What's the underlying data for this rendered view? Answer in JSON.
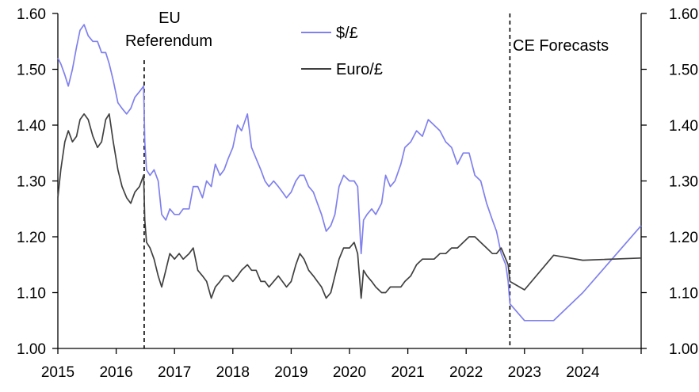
{
  "chart_data": {
    "type": "line",
    "x_axis": {
      "min": 2015,
      "max": 2025,
      "ticks": [
        "2015",
        "2016",
        "2017",
        "2018",
        "2019",
        "2020",
        "2021",
        "2022",
        "2023",
        "2024"
      ]
    },
    "y_left": {
      "min": 1.0,
      "max": 1.6,
      "ticks": [
        "1.00",
        "1.10",
        "1.20",
        "1.30",
        "1.40",
        "1.50",
        "1.60"
      ]
    },
    "y_right": {
      "min": 1.0,
      "max": 1.6,
      "ticks": [
        "1.00",
        "1.10",
        "1.20",
        "1.30",
        "1.40",
        "1.50",
        "1.60"
      ]
    },
    "grid": false,
    "legend": {
      "placement": "top-center",
      "entries": [
        "$/£",
        "Euro/£"
      ]
    },
    "annotations": {
      "eu_referendum": {
        "label_line1": "EU",
        "label_line2": "Referendum",
        "x": 2016.48
      },
      "ce_forecasts": {
        "label": "CE Forecasts",
        "x": 2022.75
      }
    },
    "series": [
      {
        "name": "$/£",
        "color": "#8080ee",
        "points": [
          [
            2015.0,
            1.52
          ],
          [
            2015.05,
            1.51
          ],
          [
            2015.12,
            1.49
          ],
          [
            2015.18,
            1.47
          ],
          [
            2015.25,
            1.5
          ],
          [
            2015.32,
            1.54
          ],
          [
            2015.38,
            1.57
          ],
          [
            2015.45,
            1.58
          ],
          [
            2015.52,
            1.56
          ],
          [
            2015.6,
            1.55
          ],
          [
            2015.68,
            1.55
          ],
          [
            2015.75,
            1.53
          ],
          [
            2015.82,
            1.53
          ],
          [
            2015.88,
            1.51
          ],
          [
            2015.95,
            1.48
          ],
          [
            2016.03,
            1.44
          ],
          [
            2016.1,
            1.43
          ],
          [
            2016.18,
            1.42
          ],
          [
            2016.25,
            1.43
          ],
          [
            2016.32,
            1.45
          ],
          [
            2016.4,
            1.46
          ],
          [
            2016.47,
            1.47
          ],
          [
            2016.49,
            1.37
          ],
          [
            2016.52,
            1.32
          ],
          [
            2016.58,
            1.31
          ],
          [
            2016.65,
            1.32
          ],
          [
            2016.72,
            1.3
          ],
          [
            2016.78,
            1.24
          ],
          [
            2016.85,
            1.23
          ],
          [
            2016.92,
            1.25
          ],
          [
            2017.0,
            1.24
          ],
          [
            2017.08,
            1.24
          ],
          [
            2017.15,
            1.25
          ],
          [
            2017.25,
            1.25
          ],
          [
            2017.32,
            1.29
          ],
          [
            2017.4,
            1.29
          ],
          [
            2017.48,
            1.27
          ],
          [
            2017.55,
            1.3
          ],
          [
            2017.63,
            1.29
          ],
          [
            2017.7,
            1.33
          ],
          [
            2017.78,
            1.31
          ],
          [
            2017.85,
            1.32
          ],
          [
            2017.92,
            1.34
          ],
          [
            2018.0,
            1.36
          ],
          [
            2018.08,
            1.4
          ],
          [
            2018.15,
            1.39
          ],
          [
            2018.25,
            1.42
          ],
          [
            2018.32,
            1.36
          ],
          [
            2018.4,
            1.34
          ],
          [
            2018.48,
            1.32
          ],
          [
            2018.55,
            1.3
          ],
          [
            2018.62,
            1.29
          ],
          [
            2018.7,
            1.3
          ],
          [
            2018.78,
            1.29
          ],
          [
            2018.85,
            1.28
          ],
          [
            2018.92,
            1.27
          ],
          [
            2019.0,
            1.28
          ],
          [
            2019.08,
            1.3
          ],
          [
            2019.15,
            1.31
          ],
          [
            2019.22,
            1.31
          ],
          [
            2019.3,
            1.29
          ],
          [
            2019.38,
            1.28
          ],
          [
            2019.45,
            1.26
          ],
          [
            2019.52,
            1.24
          ],
          [
            2019.6,
            1.21
          ],
          [
            2019.68,
            1.22
          ],
          [
            2019.75,
            1.24
          ],
          [
            2019.82,
            1.29
          ],
          [
            2019.9,
            1.31
          ],
          [
            2020.0,
            1.3
          ],
          [
            2020.08,
            1.3
          ],
          [
            2020.14,
            1.29
          ],
          [
            2020.2,
            1.17
          ],
          [
            2020.24,
            1.23
          ],
          [
            2020.3,
            1.24
          ],
          [
            2020.38,
            1.25
          ],
          [
            2020.45,
            1.24
          ],
          [
            2020.55,
            1.26
          ],
          [
            2020.62,
            1.31
          ],
          [
            2020.7,
            1.29
          ],
          [
            2020.78,
            1.3
          ],
          [
            2020.88,
            1.33
          ],
          [
            2020.95,
            1.36
          ],
          [
            2021.05,
            1.37
          ],
          [
            2021.15,
            1.39
          ],
          [
            2021.25,
            1.38
          ],
          [
            2021.35,
            1.41
          ],
          [
            2021.45,
            1.4
          ],
          [
            2021.55,
            1.39
          ],
          [
            2021.65,
            1.37
          ],
          [
            2021.75,
            1.36
          ],
          [
            2021.85,
            1.33
          ],
          [
            2021.95,
            1.35
          ],
          [
            2022.05,
            1.35
          ],
          [
            2022.15,
            1.31
          ],
          [
            2022.25,
            1.3
          ],
          [
            2022.35,
            1.26
          ],
          [
            2022.45,
            1.23
          ],
          [
            2022.52,
            1.21
          ],
          [
            2022.6,
            1.17
          ],
          [
            2022.68,
            1.15
          ],
          [
            2022.72,
            1.12
          ],
          [
            2022.75,
            1.08
          ]
        ]
      },
      {
        "name": "Euro/£",
        "color": "#404040",
        "points": [
          [
            2015.0,
            1.27
          ],
          [
            2015.05,
            1.32
          ],
          [
            2015.12,
            1.37
          ],
          [
            2015.18,
            1.39
          ],
          [
            2015.25,
            1.37
          ],
          [
            2015.32,
            1.38
          ],
          [
            2015.38,
            1.41
          ],
          [
            2015.45,
            1.42
          ],
          [
            2015.52,
            1.41
          ],
          [
            2015.6,
            1.38
          ],
          [
            2015.68,
            1.36
          ],
          [
            2015.75,
            1.37
          ],
          [
            2015.82,
            1.41
          ],
          [
            2015.88,
            1.42
          ],
          [
            2015.95,
            1.37
          ],
          [
            2016.03,
            1.32
          ],
          [
            2016.1,
            1.29
          ],
          [
            2016.18,
            1.27
          ],
          [
            2016.25,
            1.26
          ],
          [
            2016.32,
            1.28
          ],
          [
            2016.4,
            1.29
          ],
          [
            2016.47,
            1.31
          ],
          [
            2016.49,
            1.23
          ],
          [
            2016.52,
            1.19
          ],
          [
            2016.58,
            1.18
          ],
          [
            2016.65,
            1.16
          ],
          [
            2016.72,
            1.13
          ],
          [
            2016.78,
            1.11
          ],
          [
            2016.85,
            1.14
          ],
          [
            2016.92,
            1.17
          ],
          [
            2017.0,
            1.16
          ],
          [
            2017.08,
            1.17
          ],
          [
            2017.15,
            1.16
          ],
          [
            2017.25,
            1.17
          ],
          [
            2017.32,
            1.18
          ],
          [
            2017.4,
            1.14
          ],
          [
            2017.48,
            1.13
          ],
          [
            2017.55,
            1.12
          ],
          [
            2017.63,
            1.09
          ],
          [
            2017.7,
            1.11
          ],
          [
            2017.78,
            1.12
          ],
          [
            2017.85,
            1.13
          ],
          [
            2017.92,
            1.13
          ],
          [
            2018.0,
            1.12
          ],
          [
            2018.08,
            1.13
          ],
          [
            2018.15,
            1.14
          ],
          [
            2018.25,
            1.15
          ],
          [
            2018.32,
            1.14
          ],
          [
            2018.4,
            1.14
          ],
          [
            2018.48,
            1.12
          ],
          [
            2018.55,
            1.12
          ],
          [
            2018.62,
            1.11
          ],
          [
            2018.7,
            1.12
          ],
          [
            2018.78,
            1.13
          ],
          [
            2018.85,
            1.12
          ],
          [
            2018.92,
            1.11
          ],
          [
            2019.0,
            1.12
          ],
          [
            2019.08,
            1.15
          ],
          [
            2019.15,
            1.17
          ],
          [
            2019.22,
            1.16
          ],
          [
            2019.3,
            1.14
          ],
          [
            2019.38,
            1.13
          ],
          [
            2019.45,
            1.12
          ],
          [
            2019.52,
            1.11
          ],
          [
            2019.6,
            1.09
          ],
          [
            2019.68,
            1.1
          ],
          [
            2019.75,
            1.13
          ],
          [
            2019.82,
            1.16
          ],
          [
            2019.9,
            1.18
          ],
          [
            2020.0,
            1.18
          ],
          [
            2020.08,
            1.19
          ],
          [
            2020.14,
            1.17
          ],
          [
            2020.2,
            1.09
          ],
          [
            2020.24,
            1.14
          ],
          [
            2020.3,
            1.13
          ],
          [
            2020.38,
            1.12
          ],
          [
            2020.45,
            1.11
          ],
          [
            2020.55,
            1.1
          ],
          [
            2020.62,
            1.1
          ],
          [
            2020.7,
            1.11
          ],
          [
            2020.78,
            1.11
          ],
          [
            2020.88,
            1.11
          ],
          [
            2020.95,
            1.12
          ],
          [
            2021.05,
            1.13
          ],
          [
            2021.15,
            1.15
          ],
          [
            2021.25,
            1.16
          ],
          [
            2021.35,
            1.16
          ],
          [
            2021.45,
            1.16
          ],
          [
            2021.55,
            1.17
          ],
          [
            2021.65,
            1.17
          ],
          [
            2021.75,
            1.18
          ],
          [
            2021.85,
            1.18
          ],
          [
            2021.95,
            1.19
          ],
          [
            2022.05,
            1.2
          ],
          [
            2022.15,
            1.2
          ],
          [
            2022.25,
            1.19
          ],
          [
            2022.35,
            1.18
          ],
          [
            2022.45,
            1.17
          ],
          [
            2022.52,
            1.17
          ],
          [
            2022.6,
            1.18
          ],
          [
            2022.68,
            1.16
          ],
          [
            2022.72,
            1.15
          ],
          [
            2022.75,
            1.12
          ]
        ]
      },
      {
        "name": "$/£ forecast",
        "color": "#8080ee",
        "points": [
          [
            2022.75,
            1.08
          ],
          [
            2023.0,
            1.05
          ],
          [
            2023.5,
            1.05
          ],
          [
            2024.0,
            1.1
          ],
          [
            2025.0,
            1.22
          ]
        ]
      },
      {
        "name": "Euro/£ forecast",
        "color": "#404040",
        "points": [
          [
            2022.75,
            1.12
          ],
          [
            2023.0,
            1.105
          ],
          [
            2023.5,
            1.167
          ],
          [
            2024.0,
            1.158
          ],
          [
            2025.0,
            1.162
          ]
        ]
      }
    ]
  }
}
